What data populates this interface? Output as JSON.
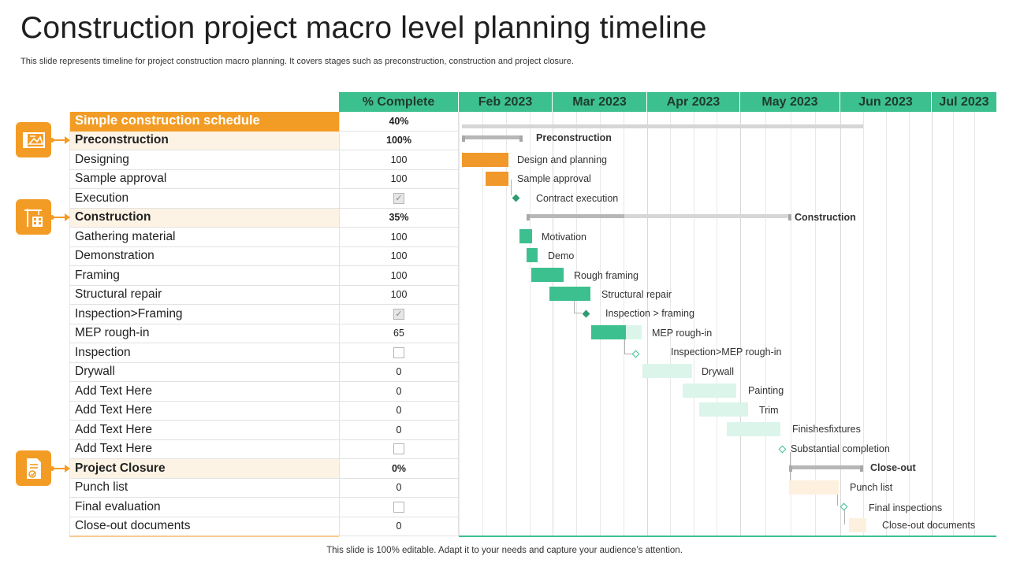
{
  "title": "Construction project macro level planning timeline",
  "subtitle": "This slide represents timeline for project construction macro planning. It covers stages such as preconstruction, construction and project closure.",
  "footer": "This slide is 100% editable. Adapt it to your needs and capture your audience’s attention.",
  "header": {
    "pct_label": "% Complete",
    "months": [
      "Feb 2023",
      "Mar 2023",
      "Apr 2023",
      "May 2023",
      "Jun 2023",
      "Jul 2023"
    ]
  },
  "icons": [
    "blueprint-icon",
    "crane-building-icon",
    "document-check-icon"
  ],
  "tasks": [
    {
      "name": "Simple construction schedule",
      "complete": "40%"
    },
    {
      "name": "Preconstruction",
      "complete": "100%"
    },
    {
      "name": "Designing",
      "complete": "100"
    },
    {
      "name": "Sample approval",
      "complete": "100"
    },
    {
      "name": "Execution",
      "complete": "checked"
    },
    {
      "name": "Construction",
      "complete": "35%"
    },
    {
      "name": "Gathering material",
      "complete": "100"
    },
    {
      "name": "Demonstration",
      "complete": "100"
    },
    {
      "name": "Framing",
      "complete": "100"
    },
    {
      "name": "Structural repair",
      "complete": "100"
    },
    {
      "name": "Inspection>Framing",
      "complete": "checked"
    },
    {
      "name": "MEP rough-in",
      "complete": "65"
    },
    {
      "name": "Inspection",
      "complete": "unchecked"
    },
    {
      "name": "Drywall",
      "complete": "0"
    },
    {
      "name": "Add Text Here",
      "complete": "0"
    },
    {
      "name": "Add Text Here",
      "complete": "0"
    },
    {
      "name": "Add Text Here",
      "complete": "0"
    },
    {
      "name": "Add Text Here",
      "complete": "unchecked"
    },
    {
      "name": "Project Closure",
      "complete": "0%"
    },
    {
      "name": "Punch list",
      "complete": "0"
    },
    {
      "name": "Final evaluation",
      "complete": "unchecked"
    },
    {
      "name": "Close-out documents",
      "complete": "0"
    }
  ],
  "gantt_labels": {
    "preconstruction": "Preconstruction",
    "design": "Design and planning",
    "sample": "Sample approval",
    "contract": "Contract execution",
    "construction": "Construction",
    "motivation": "Motivation",
    "demo": "Demo",
    "rough": "Rough framing",
    "structural": "Structural repair",
    "insp_framing": "Inspection > framing",
    "mep": "MEP rough-in",
    "insp_mep": "Inspection>MEP rough-in",
    "drywall": "Drywall",
    "painting": "Painting",
    "trim": "Trim",
    "finishes": "Finishesfixtures",
    "substantial": "Substantial completion",
    "closeout": "Close-out",
    "punch": "Punch list",
    "final_insp": "Final inspections",
    "closeout_docs": "Close-out documents"
  },
  "colors": {
    "accent_green": "#3dc08f",
    "accent_orange": "#f39c25",
    "light_green": "#dcf5ea",
    "light_orange": "#fdf0df"
  }
}
